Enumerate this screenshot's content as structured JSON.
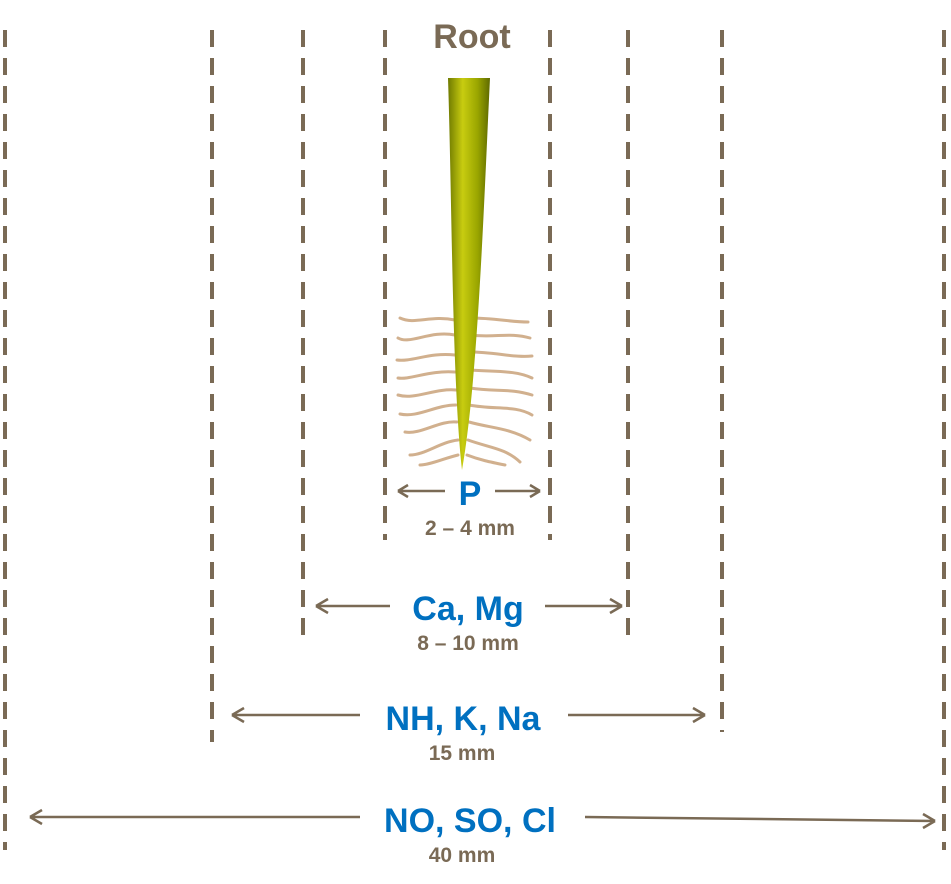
{
  "title": "Root",
  "zones": [
    {
      "ions": "P",
      "distance": "2 – 4 mm"
    },
    {
      "ions": "Ca, Mg",
      "distance": "8 – 10 mm"
    },
    {
      "ions": "NH, K, Na",
      "distance": "15 mm"
    },
    {
      "ions": "NO, SO, Cl",
      "distance": "40 mm"
    }
  ],
  "colors": {
    "ion_label": "#0070c0",
    "line": "#7a6a55",
    "root": "#a8a800",
    "root_hair": "#c9a27a"
  }
}
